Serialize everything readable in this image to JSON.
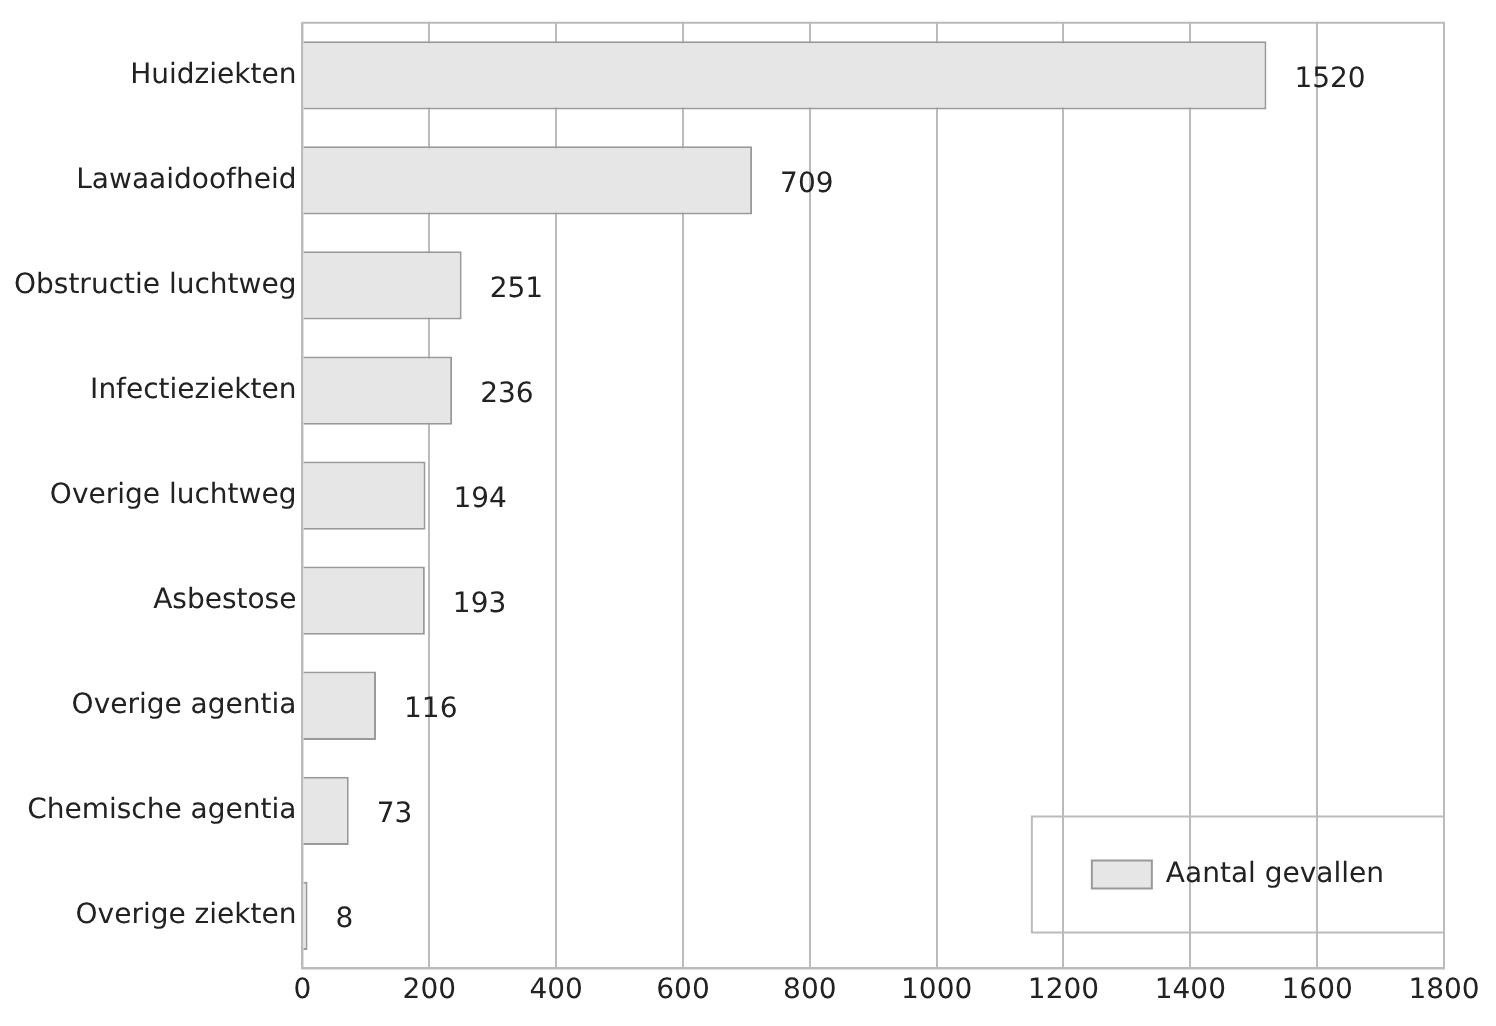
{
  "chart_data": {
    "type": "bar",
    "orientation": "horizontal",
    "categories": [
      "Huidziekten",
      "Lawaaidoofheid",
      "Obstructie luchtweg",
      "Infectieziekten",
      "Overige luchtweg",
      "Asbestose",
      "Overige agentia",
      "Chemische agentia",
      "Overige ziekten"
    ],
    "series": [
      {
        "name": "Aantal gevallen",
        "color": "#e6e6e6",
        "values": [
          1520,
          709,
          251,
          236,
          194,
          193,
          116,
          73,
          8
        ]
      }
    ],
    "xlim": [
      0,
      1800
    ],
    "xticks": [
      0,
      200,
      400,
      600,
      800,
      1000,
      1200,
      1400,
      1600,
      1800
    ],
    "grid": "x",
    "legend": "bottom right",
    "data_labels": true
  }
}
